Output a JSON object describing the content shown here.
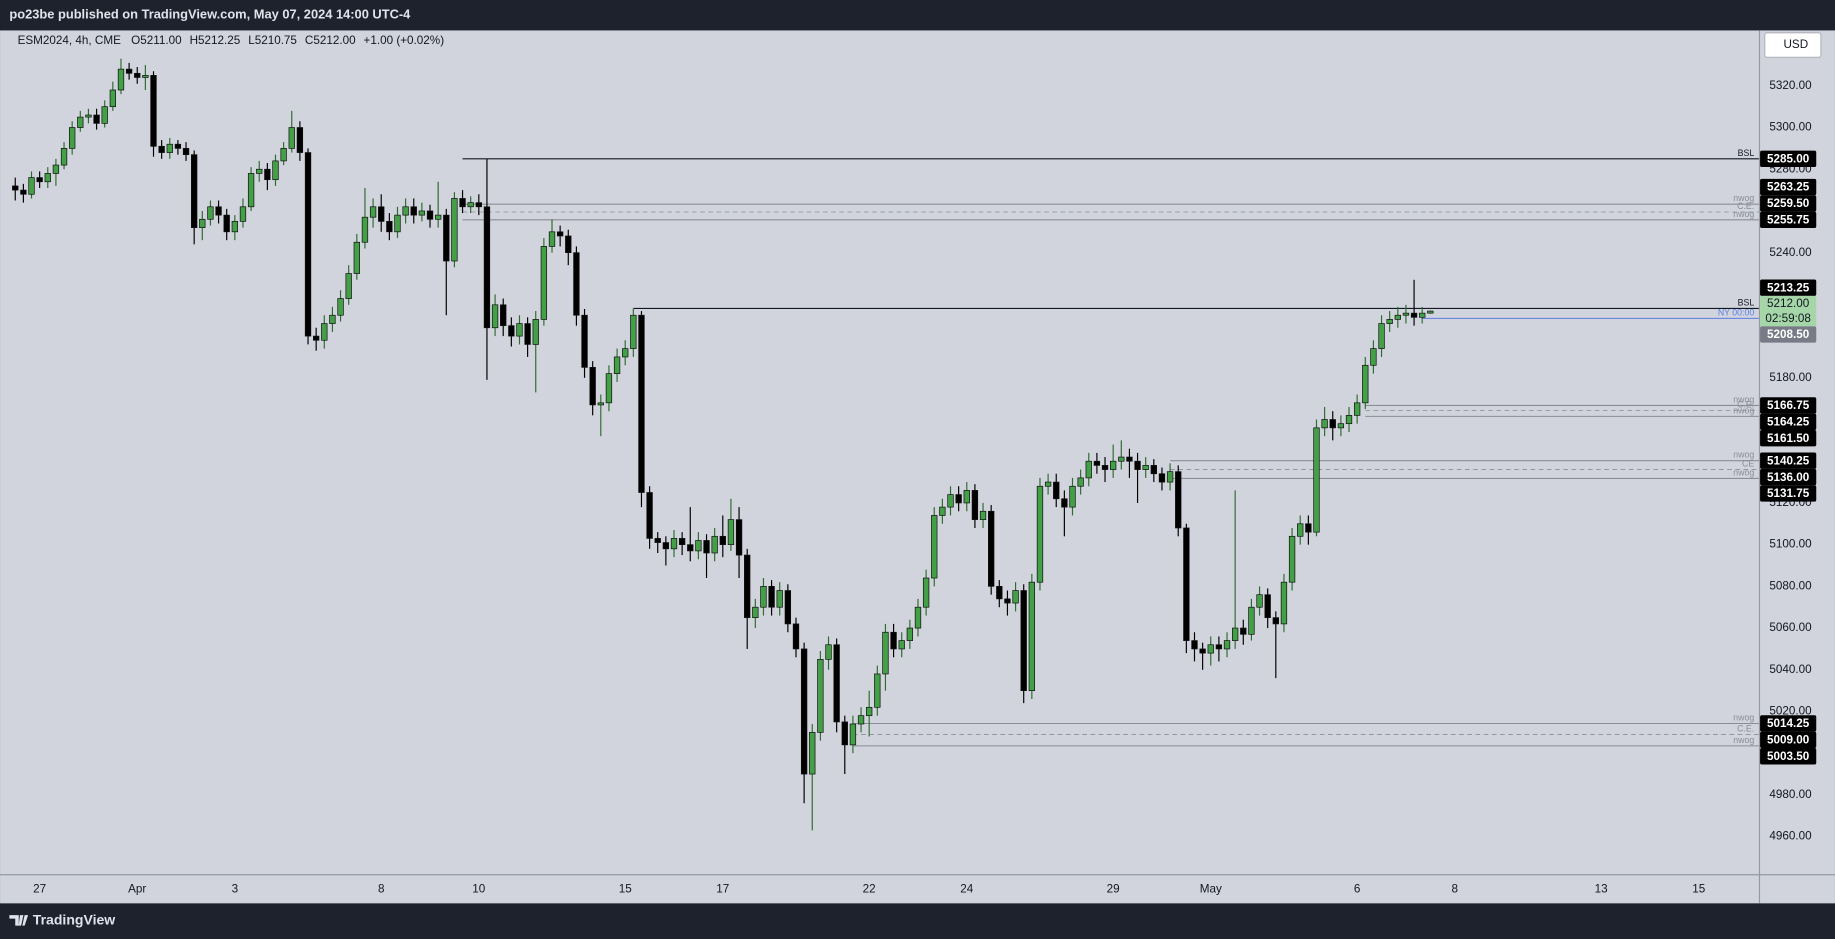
{
  "header": {
    "published": "po23be published on TradingView.com, May 07, 2024 14:00 UTC-4",
    "brand": "TradingView",
    "currency": "USD"
  },
  "chart_data": {
    "type": "candlestick",
    "symbol_info": [
      "ESM2024, 4h, CME",
      "O5211.00",
      "H5212.25",
      "L5210.75",
      "C5212.00",
      "+1.00 (+0.02%)"
    ],
    "xlim": [
      -0.72,
      214.4
    ],
    "ylim": [
      4942,
      5346
    ],
    "grid": false,
    "xticks": [
      {
        "value": 3,
        "label": "27"
      },
      {
        "value": 15,
        "label": "Apr"
      },
      {
        "value": 27,
        "label": "3"
      },
      {
        "value": 45,
        "label": "8"
      },
      {
        "value": 57,
        "label": "10"
      },
      {
        "value": 75,
        "label": "15"
      },
      {
        "value": 87,
        "label": "17"
      },
      {
        "value": 105,
        "label": "22"
      },
      {
        "value": 117,
        "label": "24"
      },
      {
        "value": 135,
        "label": "29"
      },
      {
        "value": 147,
        "label": "May"
      },
      {
        "value": 165,
        "label": "6"
      },
      {
        "value": 177,
        "label": "8"
      },
      {
        "value": 195,
        "label": "13"
      },
      {
        "value": 207,
        "label": "15"
      }
    ],
    "yticks": [
      {
        "value": 4960,
        "label": "4960.00"
      },
      {
        "value": 4980,
        "label": "4980.00"
      },
      {
        "value": 5020,
        "label": "5020.00"
      },
      {
        "value": 5040,
        "label": "5040.00"
      },
      {
        "value": 5060,
        "label": "5060.00"
      },
      {
        "value": 5080,
        "label": "5080.00"
      },
      {
        "value": 5100,
        "label": "5100.00"
      },
      {
        "value": 5120,
        "label": "5120.00"
      },
      {
        "value": 5180,
        "label": "5180.00"
      },
      {
        "value": 5240,
        "label": "5240.00"
      },
      {
        "value": 5280,
        "label": "5280.00"
      },
      {
        "value": 5300,
        "label": "5300.00"
      },
      {
        "value": 5320,
        "label": "5320.00"
      }
    ],
    "up_color": "#43a047",
    "down_color": "#000000",
    "x": [
      0,
      1,
      2,
      3,
      4,
      5,
      6,
      7,
      8,
      9,
      10,
      11,
      12,
      13,
      14,
      15,
      16,
      17,
      18,
      19,
      20,
      21,
      22,
      23,
      24,
      25,
      26,
      27,
      28,
      29,
      30,
      31,
      32,
      33,
      34,
      35,
      36,
      37,
      38,
      39,
      40,
      41,
      42,
      43,
      44,
      45,
      46,
      47,
      48,
      49,
      50,
      51,
      52,
      53,
      54,
      55,
      56,
      57,
      58,
      59,
      60,
      61,
      62,
      63,
      64,
      65,
      66,
      67,
      68,
      69,
      70,
      71,
      72,
      73,
      74,
      75,
      76,
      77,
      78,
      79,
      80,
      81,
      82,
      83,
      84,
      85,
      86,
      87,
      88,
      89,
      90,
      91,
      92,
      93,
      94,
      95,
      96,
      97,
      98,
      99,
      100,
      101,
      102,
      103,
      104,
      105,
      106,
      107,
      108,
      109,
      110,
      111,
      112,
      113,
      114,
      115,
      116,
      117,
      118,
      119,
      120,
      121,
      122,
      123,
      124,
      125,
      126,
      127,
      128,
      129,
      130,
      131,
      132,
      133,
      134,
      135,
      136,
      137,
      138,
      139,
      140,
      141,
      142,
      143,
      144,
      145,
      146,
      147,
      148,
      149,
      150,
      151,
      152,
      153,
      154,
      155,
      156,
      157,
      158,
      159,
      160,
      161,
      162,
      163,
      164,
      165,
      166,
      167,
      168,
      169,
      170,
      171,
      172,
      173,
      174
    ],
    "open": [
      5272,
      5270,
      5268,
      5276,
      5274,
      5278,
      5282,
      5290,
      5300,
      5305,
      5306,
      5302,
      5310,
      5318,
      5328,
      5326,
      5324,
      5325,
      5291,
      5288,
      5292,
      5290,
      5287,
      5252,
      5256,
      5262,
      5258,
      5250,
      5255,
      5262,
      5278,
      5280,
      5275,
      5284,
      5290,
      5300,
      5288,
      5200,
      5198,
      5206,
      5210,
      5218,
      5230,
      5245,
      5257,
      5262,
      5255,
      5250,
      5258,
      5262,
      5258,
      5260,
      5256,
      5258,
      5236,
      5266,
      5262,
      5264,
      5262,
      5204,
      5215,
      5205,
      5200,
      5206,
      5196,
      5208,
      5243,
      5250,
      5248,
      5240,
      5210,
      5185,
      5167,
      5168,
      5182,
      5190,
      5194,
      5210,
      5125,
      5103,
      5101,
      5098,
      5103,
      5100,
      5097,
      5102,
      5096,
      5104,
      5100,
      5112,
      5095,
      5065,
      5070,
      5080,
      5070,
      5078,
      5062,
      5050,
      4990,
      5010,
      5045,
      5052,
      5015,
      5004,
      5014,
      5018,
      5022,
      5038,
      5058,
      5050,
      5054,
      5060,
      5070,
      5084,
      5114,
      5118,
      5124,
      5120,
      5126,
      5112,
      5116,
      5080,
      5074,
      5072,
      5078,
      5030,
      5082,
      5128,
      5130,
      5122,
      5118,
      5128,
      5132,
      5140,
      5138,
      5136,
      5140,
      5142,
      5140,
      5136,
      5138,
      5134,
      5130,
      5135,
      5108,
      5054,
      5050,
      5048,
      5052,
      5050,
      5054,
      5060,
      5057,
      5070,
      5076,
      5065,
      5062,
      5082,
      5104,
      5110,
      5106,
      5156,
      5160,
      5156,
      5158,
      5162,
      5168,
      5186,
      5194,
      5206,
      5208,
      5210,
      5211,
      5209,
      5211
    ],
    "high": [
      5276,
      5273,
      5279,
      5279,
      5281,
      5285,
      5293,
      5303,
      5308,
      5309,
      5309,
      5313,
      5322,
      5333,
      5331,
      5329,
      5330,
      5327,
      5294,
      5295,
      5294,
      5293,
      5289,
      5260,
      5265,
      5265,
      5261,
      5258,
      5266,
      5281,
      5284,
      5283,
      5287,
      5293,
      5308,
      5303,
      5290,
      5204,
      5210,
      5214,
      5222,
      5234,
      5249,
      5271,
      5266,
      5268,
      5259,
      5262,
      5266,
      5266,
      5264,
      5263,
      5274,
      5261,
      5269,
      5270,
      5267,
      5268,
      5285,
      5220,
      5218,
      5209,
      5210,
      5209,
      5212,
      5247,
      5256,
      5253,
      5251,
      5243,
      5213,
      5188,
      5172,
      5186,
      5194,
      5198,
      5213.25,
      5212,
      5128,
      5106,
      5104,
      5107,
      5106,
      5118,
      5106,
      5105,
      5108,
      5114,
      5122,
      5118,
      5098,
      5074,
      5084,
      5083,
      5082,
      5081,
      5065,
      5053,
      5014,
      5049,
      5056,
      5055,
      5018,
      5018,
      5022,
      5030,
      5042,
      5062,
      5062,
      5058,
      5064,
      5074,
      5088,
      5118,
      5122,
      5128,
      5128,
      5130,
      5129,
      5120,
      5119,
      5083,
      5078,
      5082,
      5081,
      5086,
      5132,
      5134,
      5134,
      5126,
      5132,
      5136,
      5144,
      5144,
      5142,
      5148,
      5150,
      5146,
      5144,
      5142,
      5141,
      5137,
      5139,
      5138,
      5110,
      5058,
      5053,
      5056,
      5056,
      5058,
      5126,
      5064,
      5074,
      5080,
      5079,
      5068,
      5086,
      5108,
      5114,
      5114,
      5160,
      5166,
      5164,
      5162,
      5166,
      5172,
      5190,
      5198,
      5210,
      5212,
      5214,
      5215,
      5227,
      5214,
      5212.25
    ],
    "low": [
      5265,
      5264,
      5266,
      5271,
      5271,
      5272,
      5280,
      5287,
      5298,
      5302,
      5299,
      5300,
      5308,
      5316,
      5323,
      5321,
      5318,
      5286,
      5285,
      5285,
      5287,
      5284,
      5244,
      5246,
      5253,
      5254,
      5246,
      5246,
      5252,
      5260,
      5274,
      5270,
      5272,
      5282,
      5288,
      5284,
      5196,
      5193,
      5194,
      5202,
      5207,
      5215,
      5227,
      5242,
      5252,
      5250,
      5246,
      5247,
      5254,
      5254,
      5255,
      5252,
      5252,
      5210,
      5233,
      5259,
      5259,
      5258,
      5179,
      5200,
      5200,
      5195,
      5196,
      5190,
      5173,
      5205,
      5240,
      5243,
      5234,
      5205,
      5180,
      5162,
      5152,
      5164,
      5178,
      5186,
      5190,
      5118,
      5098,
      5096,
      5090,
      5094,
      5095,
      5092,
      5093,
      5084,
      5092,
      5094,
      5097,
      5084,
      5050,
      5060,
      5066,
      5066,
      5066,
      5058,
      5046,
      4976,
      4963,
      5006,
      5040,
      5010,
      4990,
      5000,
      5010,
      5008,
      5018,
      5030,
      5046,
      5046,
      5050,
      5056,
      5066,
      5080,
      5110,
      5114,
      5116,
      5116,
      5108,
      5108,
      5076,
      5070,
      5066,
      5068,
      5024,
      5026,
      5078,
      5124,
      5118,
      5104,
      5114,
      5124,
      5128,
      5134,
      5130,
      5132,
      5136,
      5132,
      5120,
      5132,
      5130,
      5126,
      5126,
      5104,
      5048,
      5044,
      5040,
      5042,
      5044,
      5046,
      5050,
      5052,
      5054,
      5066,
      5060,
      5036,
      5058,
      5078,
      5100,
      5100,
      5104,
      5152,
      5150,
      5152,
      5154,
      5158,
      5165,
      5182,
      5190,
      5202,
      5204,
      5206,
      5205,
      5206,
      5210.75
    ],
    "close": [
      5270,
      5268,
      5276,
      5274,
      5278,
      5282,
      5290,
      5300,
      5305,
      5306,
      5302,
      5310,
      5318,
      5328,
      5326,
      5324,
      5325,
      5291,
      5288,
      5292,
      5290,
      5287,
      5252,
      5256,
      5262,
      5258,
      5250,
      5255,
      5262,
      5278,
      5280,
      5275,
      5284,
      5290,
      5300,
      5288,
      5200,
      5198,
      5206,
      5210,
      5218,
      5230,
      5245,
      5257,
      5262,
      5255,
      5250,
      5258,
      5262,
      5258,
      5260,
      5256,
      5258,
      5236,
      5266,
      5262,
      5264,
      5262,
      5204,
      5215,
      5205,
      5200,
      5206,
      5196,
      5208,
      5243,
      5250,
      5248,
      5240,
      5210,
      5185,
      5167,
      5168,
      5182,
      5190,
      5194,
      5210,
      5125,
      5103,
      5101,
      5098,
      5103,
      5100,
      5097,
      5102,
      5096,
      5104,
      5100,
      5112,
      5095,
      5065,
      5070,
      5080,
      5070,
      5078,
      5062,
      5050,
      4990,
      5010,
      5045,
      5052,
      5015,
      5004,
      5014,
      5018,
      5022,
      5038,
      5058,
      5050,
      5054,
      5060,
      5070,
      5084,
      5114,
      5118,
      5124,
      5120,
      5126,
      5112,
      5116,
      5080,
      5074,
      5072,
      5078,
      5030,
      5082,
      5128,
      5130,
      5122,
      5118,
      5128,
      5132,
      5140,
      5138,
      5136,
      5140,
      5142,
      5140,
      5136,
      5138,
      5134,
      5130,
      5135,
      5108,
      5054,
      5050,
      5048,
      5052,
      5050,
      5054,
      5060,
      5057,
      5070,
      5076,
      5065,
      5062,
      5082,
      5104,
      5110,
      5106,
      5156,
      5160,
      5156,
      5158,
      5162,
      5168,
      5186,
      5194,
      5206,
      5208,
      5210,
      5211,
      5209,
      5211,
      5212
    ],
    "levels": [
      {
        "name": "BSL",
        "value": 5285,
        "label": "5285.00",
        "start": 55,
        "color": "#131722",
        "dash": false,
        "box_color": "#000000"
      },
      {
        "name": "nwog",
        "value": 5263.25,
        "label": "5263.25",
        "start": 55,
        "color": "#8a8d96",
        "dash": false,
        "box_color": "#000000"
      },
      {
        "name": "C.E.",
        "value": 5259.5,
        "label": "5259.50",
        "start": 55,
        "color": "#8a8d96",
        "dash": true,
        "box_color": "#000000"
      },
      {
        "name": "nwog",
        "value": 5255.75,
        "label": "5255.75",
        "start": 55,
        "color": "#8a8d96",
        "dash": false,
        "box_color": "#000000"
      },
      {
        "name": "BSL",
        "value": 5213.25,
        "label": "5213.25",
        "start": 76,
        "color": "#131722",
        "dash": false,
        "box_color": "#000000"
      },
      {
        "name": "NY 00:00",
        "value": 5208.5,
        "label": "5208.50",
        "start": 173,
        "color": "#5b7ee5",
        "dash": false,
        "box_color": "#787b86"
      },
      {
        "name": "nwog",
        "value": 5166.75,
        "label": "5166.75",
        "start": 166,
        "color": "#8a8d96",
        "dash": false,
        "box_color": "#000000"
      },
      {
        "name": "C.E.",
        "value": 5164.25,
        "label": "5164.25",
        "start": 166,
        "color": "#8a8d96",
        "dash": true,
        "box_color": "#000000"
      },
      {
        "name": "nwog",
        "value": 5161.5,
        "label": "5161.50",
        "start": 166,
        "color": "#8a8d96",
        "dash": false,
        "box_color": "#000000"
      },
      {
        "name": "nwog",
        "value": 5140.25,
        "label": "5140.25",
        "start": 142,
        "color": "#8a8d96",
        "dash": false,
        "box_color": "#000000"
      },
      {
        "name": "CE",
        "value": 5136,
        "label": "5136.00",
        "start": 142,
        "color": "#8a8d96",
        "dash": true,
        "box_color": "#000000"
      },
      {
        "name": "nwog",
        "value": 5131.75,
        "label": "5131.75",
        "start": 142,
        "color": "#8a8d96",
        "dash": false,
        "box_color": "#000000"
      },
      {
        "name": "nwog",
        "value": 5014.25,
        "label": "5014.25",
        "start": 103,
        "color": "#8a8d96",
        "dash": false,
        "box_color": "#000000"
      },
      {
        "name": "C.E.",
        "value": 5009,
        "label": "5009.00",
        "start": 103,
        "color": "#8a8d96",
        "dash": true,
        "box_color": "#000000"
      },
      {
        "name": "nwog",
        "value": 5003.5,
        "label": "5003.50",
        "start": 103,
        "color": "#8a8d96",
        "dash": false,
        "box_color": "#000000"
      }
    ],
    "current": {
      "value": 5212,
      "label": "5212.00",
      "countdown": "02:59:08",
      "color": "#a5d6a7"
    }
  }
}
